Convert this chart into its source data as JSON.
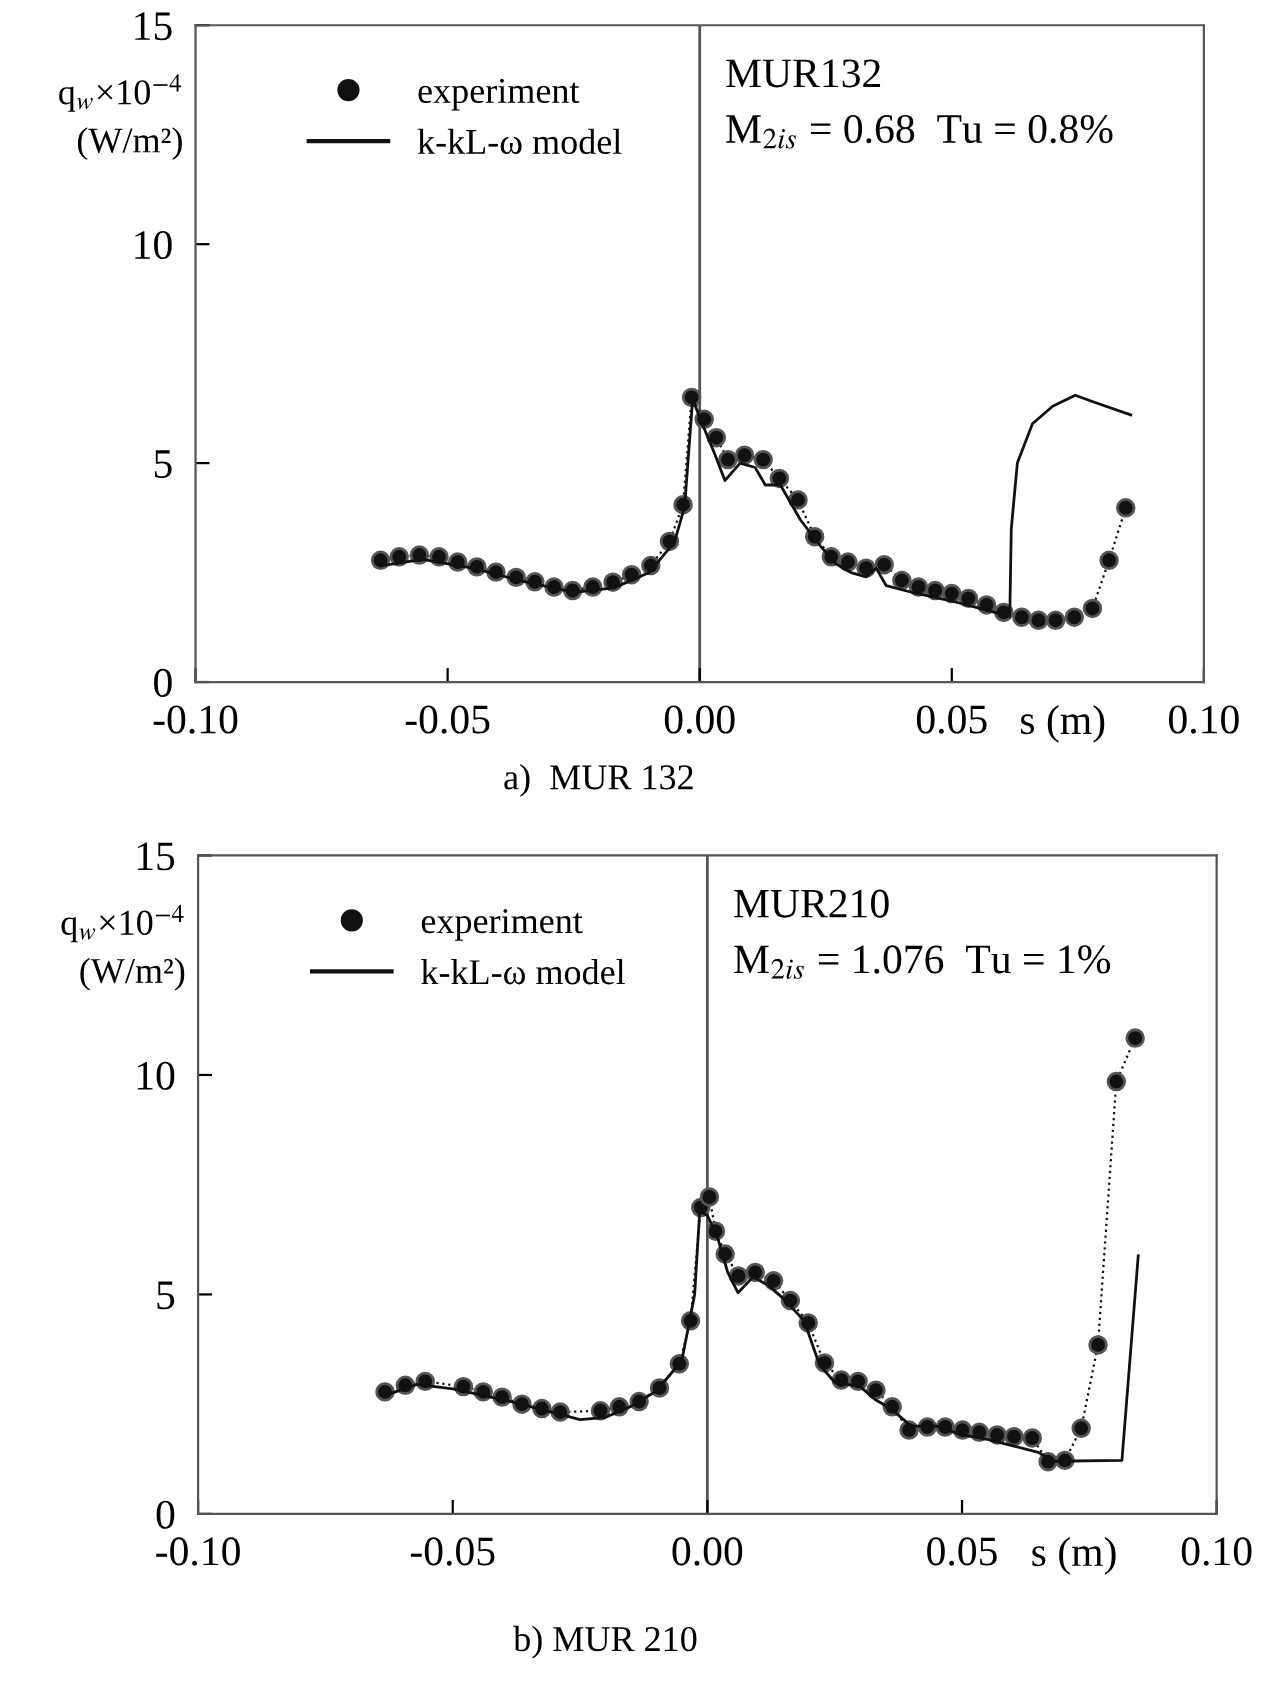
{
  "chart_data": [
    {
      "type": "line",
      "title": "a)  MUR 132",
      "xlabel": "s (m)",
      "ylabel": "q$_{w}$×10$^{−4}$\n(W/m²)",
      "annotations": [
        "MUR132",
        "M$_{2is}$ = 0.68  Tu = 0.8%"
      ],
      "xlim": [
        -0.1,
        0.1
      ],
      "ylim": [
        0,
        15
      ],
      "xticks": [
        {
          "value": -0.1,
          "label": "-0.10"
        },
        {
          "value": -0.05,
          "label": "-0.05"
        },
        {
          "value": 0,
          "label": "0.00"
        },
        {
          "value": 0.05,
          "label": "0.05"
        },
        {
          "value": 0.1,
          "label": "0.10"
        }
      ],
      "yticks": [
        0,
        5,
        10,
        15
      ],
      "grid": false,
      "legend": "top left",
      "ref_lines": [
        {
          "axis": "x",
          "value": 0,
          "color": "#555555"
        }
      ],
      "series": [
        {
          "name": "experiment",
          "color": "#111111",
          "marker": "circle",
          "line_style": "dotted",
          "x": [
            -0.0633,
            -0.0596,
            -0.0556,
            -0.0517,
            -0.048,
            -0.0442,
            -0.0404,
            -0.0364,
            -0.0327,
            -0.0289,
            -0.0252,
            -0.0212,
            -0.0172,
            -0.0135,
            -0.0097,
            -0.006,
            -0.0033,
            -0.0016,
            0.0009,
            0.0033,
            0.0056,
            0.0089,
            0.0126,
            0.0158,
            0.0195,
            0.0228,
            0.0261,
            0.0294,
            0.033,
            0.0366,
            0.0401,
            0.0434,
            0.0467,
            0.05,
            0.0533,
            0.0569,
            0.0603,
            0.0639,
            0.0672,
            0.0706,
            0.0743,
            0.0779,
            0.0812,
            0.0845
          ],
          "values": [
            2.78,
            2.86,
            2.9,
            2.86,
            2.74,
            2.63,
            2.51,
            2.39,
            2.29,
            2.17,
            2.09,
            2.17,
            2.28,
            2.45,
            2.66,
            3.21,
            4.05,
            6.5,
            6.0,
            5.58,
            5.08,
            5.18,
            5.08,
            4.65,
            4.16,
            3.32,
            2.86,
            2.74,
            2.6,
            2.68,
            2.32,
            2.17,
            2.09,
            2.02,
            1.91,
            1.76,
            1.59,
            1.48,
            1.41,
            1.41,
            1.48,
            1.68,
            2.78,
            3.98
          ]
        },
        {
          "name": "k-kL-ω model",
          "color": "#111111",
          "marker": "none",
          "line_style": "solid",
          "x": [
            -0.0633,
            -0.055,
            -0.045,
            -0.035,
            -0.025,
            -0.017,
            -0.01,
            -0.005,
            -0.003,
            -0.0015,
            -0.0012,
            0.0005,
            0.003,
            0.005,
            0.008,
            0.011,
            0.013,
            0.016,
            0.02,
            0.024,
            0.027,
            0.03,
            0.033,
            0.035,
            0.037,
            0.042,
            0.05,
            0.055,
            0.0615,
            0.0618,
            0.063,
            0.066,
            0.07,
            0.0745,
            0.078,
            0.0855
          ],
          "values": [
            2.65,
            2.8,
            2.6,
            2.3,
            2.05,
            2.15,
            2.5,
            3.2,
            4.0,
            6.3,
            6.4,
            5.9,
            5.2,
            4.6,
            5.0,
            4.9,
            4.5,
            4.5,
            3.7,
            3.1,
            2.7,
            2.5,
            2.4,
            2.6,
            2.2,
            2.05,
            1.85,
            1.7,
            1.5,
            3.5,
            5.0,
            5.9,
            6.3,
            6.55,
            6.4,
            6.1
          ]
        }
      ]
    },
    {
      "type": "line",
      "title": "b) MUR 210",
      "xlabel": "s (m)",
      "ylabel": "q$_{w}$×10$^{−4}$\n(W/m²)",
      "annotations": [
        "MUR210",
        "M$_{2is}$ = 1.076  Tu = 1%"
      ],
      "xlim": [
        -0.1,
        0.1
      ],
      "ylim": [
        0,
        15
      ],
      "xticks": [
        {
          "value": -0.1,
          "label": "-0.10"
        },
        {
          "value": -0.05,
          "label": "-0.05"
        },
        {
          "value": 0,
          "label": "0.00"
        },
        {
          "value": 0.05,
          "label": "0.05"
        },
        {
          "value": 0.1,
          "label": "0.10"
        }
      ],
      "yticks": [
        0,
        5,
        10,
        15
      ],
      "grid": false,
      "legend": "top left",
      "ref_lines": [
        {
          "axis": "x",
          "value": 0,
          "color": "#555555"
        }
      ],
      "series": [
        {
          "name": "experiment",
          "color": "#111111",
          "marker": "circle",
          "line_style": "dotted",
          "x": [
            -0.0633,
            -0.0593,
            -0.0554,
            -0.0479,
            -0.044,
            -0.0403,
            -0.0364,
            -0.0325,
            -0.0289,
            -0.021,
            -0.0173,
            -0.0134,
            -0.0094,
            -0.0055,
            -0.0033,
            -0.0013,
            0.0004,
            0.0016,
            0.0035,
            0.0061,
            0.0094,
            0.013,
            0.0163,
            0.0198,
            0.023,
            0.0263,
            0.0296,
            0.0331,
            0.0363,
            0.0396,
            0.0432,
            0.0467,
            0.0501,
            0.0534,
            0.0569,
            0.0602,
            0.0638,
            0.0669,
            0.0702,
            0.0734,
            0.0767,
            0.0803,
            0.084
          ],
          "values": [
            2.78,
            2.93,
            3.02,
            2.9,
            2.78,
            2.66,
            2.5,
            2.4,
            2.32,
            2.35,
            2.44,
            2.56,
            2.87,
            3.42,
            4.4,
            6.98,
            7.22,
            6.44,
            5.92,
            5.42,
            5.5,
            5.31,
            4.86,
            4.35,
            3.44,
            3.05,
            3.02,
            2.82,
            2.44,
            1.91,
            1.98,
            1.98,
            1.91,
            1.86,
            1.8,
            1.76,
            1.73,
            1.19,
            1.22,
            1.95,
            3.85,
            9.85,
            10.84
          ]
        },
        {
          "name": "k-kL-ω model",
          "color": "#111111",
          "marker": "none",
          "line_style": "solid",
          "x": [
            -0.0633,
            -0.057,
            -0.05,
            -0.04,
            -0.03,
            -0.025,
            -0.02,
            -0.015,
            -0.01,
            -0.005,
            -0.0025,
            -0.0015,
            0.0,
            0.002,
            0.004,
            0.006,
            0.009,
            0.012,
            0.015,
            0.019,
            0.022,
            0.025,
            0.03,
            0.033,
            0.036,
            0.04,
            0.045,
            0.05,
            0.055,
            0.06,
            0.065,
            0.068,
            0.0814,
            0.0846
          ],
          "values": [
            2.7,
            2.95,
            2.85,
            2.6,
            2.3,
            2.15,
            2.2,
            2.45,
            2.8,
            3.5,
            5.0,
            6.9,
            6.8,
            6.3,
            5.5,
            5.04,
            5.4,
            5.2,
            4.9,
            4.4,
            3.4,
            3.0,
            2.9,
            2.6,
            2.4,
            2.0,
            2.0,
            1.8,
            1.7,
            1.55,
            1.4,
            1.2,
            1.22,
            5.88
          ]
        }
      ]
    }
  ]
}
